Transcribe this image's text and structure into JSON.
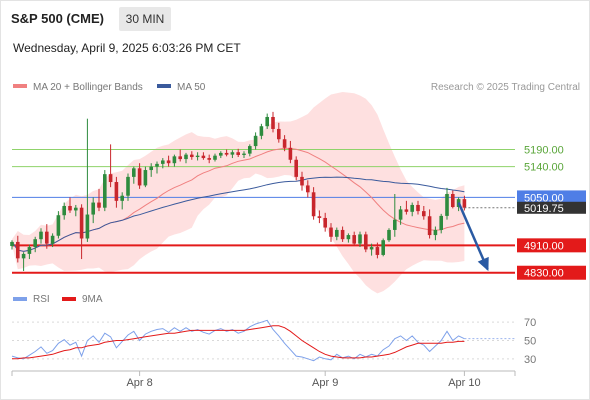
{
  "header": {
    "instrument": "S&P 500 (CME)",
    "timeframe": "30 MIN",
    "datetime": "Wednesday, April 9, 2025 6:03:26 PM CET"
  },
  "colors": {
    "bull": "#2e8b3e",
    "bear": "#c8262c",
    "bollinger": "#fdd5d5",
    "ma20": "#f08080",
    "ma50": "#3a5a9c",
    "resistance": "#8fd36a",
    "pivot": "#4f7ee6",
    "support": "#e31a1a",
    "rsi": "#7ea1ea",
    "rsi_ma": "#e31a1a"
  },
  "chart_data": [
    {
      "type": "candlestick",
      "legend": [
        {
          "label": "MA 20 + Bollinger Bands",
          "color": "#f08080"
        },
        {
          "label": "MA 50",
          "color": "#3a5a9c"
        }
      ],
      "credit": "Research © 2025 Trading Central",
      "x_ticks": [
        {
          "label": "Apr 8",
          "index": 22
        },
        {
          "label": "Apr 9",
          "index": 54
        },
        {
          "label": "Apr 10",
          "index": 78
        }
      ],
      "levels": [
        {
          "label": "5190.00",
          "value": 5190,
          "kind": "resistance"
        },
        {
          "label": "5140.00",
          "value": 5140,
          "kind": "resistance"
        },
        {
          "label": "5050.00",
          "value": 5050,
          "kind": "pivot"
        },
        {
          "label": "4910.00",
          "value": 4910,
          "kind": "support"
        },
        {
          "label": "4830.00",
          "value": 4830,
          "kind": "support"
        }
      ],
      "last_price": {
        "label": "5019.75",
        "value": 5019.75
      },
      "forecast": {
        "from_index": 77,
        "from_value": 5035,
        "to_index": 82,
        "to_value": 4840
      },
      "candles": [
        [
          4908,
          4925,
          4898,
          4920
        ],
        [
          4920,
          4938,
          4860,
          4872
        ],
        [
          4872,
          4890,
          4835,
          4885
        ],
        [
          4885,
          4912,
          4870,
          4905
        ],
        [
          4905,
          4935,
          4890,
          4928
        ],
        [
          4928,
          4960,
          4915,
          4950
        ],
        [
          4950,
          4972,
          4900,
          4915
        ],
        [
          4915,
          4945,
          4905,
          4938
        ],
        [
          4938,
          5010,
          4930,
          4998
        ],
        [
          4998,
          5035,
          4985,
          5025
        ],
        [
          5025,
          5050,
          5005,
          5012
        ],
        [
          5012,
          5028,
          4995,
          5020
        ],
        [
          5020,
          5030,
          4870,
          4930
        ],
        [
          4930,
          5280,
          4920,
          5000
        ],
        [
          5000,
          5050,
          4975,
          5035
        ],
        [
          5035,
          5075,
          5010,
          5020
        ],
        [
          5020,
          5130,
          5010,
          5118
        ],
        [
          5118,
          5205,
          5080,
          5095
        ],
        [
          5095,
          5110,
          5020,
          5040
        ],
        [
          5040,
          5065,
          5015,
          5055
        ],
        [
          5055,
          5120,
          5040,
          5110
        ],
        [
          5110,
          5140,
          5090,
          5135
        ],
        [
          5135,
          5150,
          5075,
          5085
        ],
        [
          5085,
          5140,
          5080,
          5130
        ],
        [
          5130,
          5150,
          5110,
          5140
        ],
        [
          5140,
          5155,
          5120,
          5148
        ],
        [
          5148,
          5165,
          5135,
          5158
        ],
        [
          5158,
          5172,
          5140,
          5150
        ],
        [
          5150,
          5175,
          5140,
          5170
        ],
        [
          5170,
          5190,
          5155,
          5162
        ],
        [
          5162,
          5180,
          5150,
          5175
        ],
        [
          5175,
          5185,
          5160,
          5168
        ],
        [
          5168,
          5182,
          5158,
          5172
        ],
        [
          5172,
          5182,
          5160,
          5165
        ],
        [
          5165,
          5175,
          5150,
          5160
        ],
        [
          5160,
          5178,
          5155,
          5172
        ],
        [
          5172,
          5185,
          5165,
          5180
        ],
        [
          5180,
          5190,
          5170,
          5175
        ],
        [
          5175,
          5188,
          5165,
          5182
        ],
        [
          5182,
          5192,
          5168,
          5174
        ],
        [
          5174,
          5185,
          5165,
          5178
        ],
        [
          5178,
          5205,
          5170,
          5200
        ],
        [
          5200,
          5240,
          5190,
          5230
        ],
        [
          5230,
          5265,
          5220,
          5258
        ],
        [
          5258,
          5295,
          5250,
          5285
        ],
        [
          5285,
          5300,
          5240,
          5250
        ],
        [
          5250,
          5268,
          5210,
          5220
        ],
        [
          5220,
          5232,
          5185,
          5195
        ],
        [
          5195,
          5215,
          5150,
          5160
        ],
        [
          5160,
          5170,
          5100,
          5110
        ],
        [
          5110,
          5125,
          5070,
          5085
        ],
        [
          5085,
          5100,
          5050,
          5065
        ],
        [
          5065,
          5080,
          4985,
          4995
        ],
        [
          4995,
          5012,
          4975,
          4990
        ],
        [
          4990,
          5005,
          4950,
          4962
        ],
        [
          4962,
          4975,
          4920,
          4935
        ],
        [
          4935,
          4962,
          4925,
          4955
        ],
        [
          4955,
          4965,
          4920,
          4928
        ],
        [
          4928,
          4945,
          4918,
          4940
        ],
        [
          4940,
          4950,
          4910,
          4915
        ],
        [
          4915,
          4950,
          4905,
          4942
        ],
        [
          4942,
          4950,
          4890,
          4898
        ],
        [
          4898,
          4915,
          4880,
          4905
        ],
        [
          4905,
          4918,
          4872,
          4882
        ],
        [
          4882,
          4930,
          4878,
          4925
        ],
        [
          4925,
          4960,
          4920,
          4955
        ],
        [
          4955,
          5060,
          4935,
          4985
        ],
        [
          4985,
          5025,
          4970,
          5015
        ],
        [
          5015,
          5040,
          5000,
          5008
        ],
        [
          5008,
          5035,
          4995,
          5028
        ],
        [
          5028,
          5040,
          5000,
          5010
        ],
        [
          5010,
          5025,
          4985,
          4995
        ],
        [
          4995,
          5015,
          4930,
          4940
        ],
        [
          4940,
          4965,
          4925,
          4955
        ],
        [
          4955,
          5002,
          4945,
          4996
        ],
        [
          4996,
          5078,
          4985,
          5060
        ],
        [
          5060,
          5070,
          5018,
          5022
        ],
        [
          5022,
          5050,
          5010,
          5045
        ],
        [
          5045,
          5055,
          5012,
          5020
        ]
      ]
    },
    {
      "type": "line",
      "legend": [
        {
          "label": "RSI",
          "color": "#7ea1ea"
        },
        {
          "label": "9MA",
          "color": "#e31a1a"
        }
      ],
      "y_ticks": [
        70,
        50,
        30
      ],
      "ylim": [
        20,
        80
      ],
      "series": [
        {
          "name": "RSI",
          "values": [
            33,
            31,
            30,
            34,
            38,
            43,
            36,
            39,
            47,
            51,
            45,
            48,
            33,
            50,
            55,
            48,
            58,
            54,
            42,
            49,
            56,
            60,
            50,
            57,
            60,
            62,
            63,
            59,
            64,
            60,
            64,
            60,
            62,
            59,
            57,
            61,
            63,
            60,
            62,
            58,
            60,
            65,
            68,
            70,
            72,
            62,
            55,
            47,
            40,
            33,
            32,
            30,
            28,
            32,
            30,
            29,
            35,
            31,
            33,
            30,
            35,
            32,
            35,
            33,
            40,
            44,
            52,
            55,
            50,
            55,
            48,
            45,
            38,
            44,
            50,
            60,
            50,
            55,
            52
          ]
        },
        {
          "name": "9MA",
          "values": [
            30,
            30,
            31,
            31,
            32,
            33,
            34,
            35,
            37,
            39,
            40,
            42,
            42,
            44,
            45,
            46,
            48,
            49,
            50,
            50,
            51,
            52,
            53,
            54,
            55,
            56,
            57,
            58,
            58,
            59,
            60,
            61,
            61,
            61,
            61,
            61,
            61,
            61,
            61,
            61,
            61,
            62,
            63,
            64,
            65,
            66,
            66,
            64,
            60,
            55,
            50,
            46,
            42,
            38,
            35,
            33,
            32,
            31,
            31,
            31,
            31,
            32,
            32,
            33,
            34,
            35,
            37,
            40,
            43,
            45,
            47,
            47,
            47,
            47,
            47,
            48,
            48,
            49,
            49
          ]
        }
      ]
    }
  ]
}
